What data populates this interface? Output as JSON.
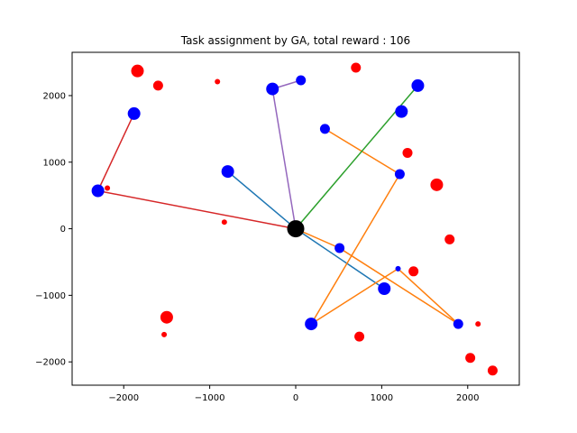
{
  "chart_data": {
    "type": "scatter",
    "title": "Task assignment by GA, total reward : 106",
    "xlabel": "",
    "ylabel": "",
    "xlim": [
      -2600,
      2600
    ],
    "ylim": [
      -2350,
      2650
    ],
    "xticks": [
      -2000,
      -1000,
      0,
      1000,
      2000
    ],
    "yticks": [
      -2000,
      -1000,
      0,
      1000,
      2000
    ],
    "xtick_labels": [
      "−2000",
      "−1000",
      "0",
      "1000",
      "2000"
    ],
    "ytick_labels": [
      "−2000",
      "−1000",
      "0",
      "1000",
      "2000"
    ],
    "grid": false,
    "depot": {
      "x": 0,
      "y": 0,
      "color": "#000000",
      "size": "large"
    },
    "assigned_tasks": [
      {
        "x": -1880,
        "y": 1730,
        "size": "medium"
      },
      {
        "x": -2300,
        "y": 570,
        "size": "medium"
      },
      {
        "x": -270,
        "y": 2100,
        "size": "medium"
      },
      {
        "x": 60,
        "y": 2230,
        "size": "small"
      },
      {
        "x": 1420,
        "y": 2150,
        "size": "medium"
      },
      {
        "x": 1230,
        "y": 1760,
        "size": "medium"
      },
      {
        "x": 340,
        "y": 1500,
        "size": "small"
      },
      {
        "x": 1210,
        "y": 820,
        "size": "small"
      },
      {
        "x": -790,
        "y": 860,
        "size": "medium"
      },
      {
        "x": 510,
        "y": -290,
        "size": "small"
      },
      {
        "x": 1030,
        "y": -900,
        "size": "medium"
      },
      {
        "x": 1190,
        "y": -600,
        "size": "tiny"
      },
      {
        "x": 180,
        "y": -1430,
        "size": "medium"
      },
      {
        "x": 1890,
        "y": -1430,
        "size": "small"
      }
    ],
    "unassigned_tasks": [
      {
        "x": -1840,
        "y": 2370,
        "size": "medium"
      },
      {
        "x": -1600,
        "y": 2150,
        "size": "small"
      },
      {
        "x": -910,
        "y": 2210,
        "size": "tiny"
      },
      {
        "x": 700,
        "y": 2420,
        "size": "small"
      },
      {
        "x": 1300,
        "y": 1140,
        "size": "small"
      },
      {
        "x": 1640,
        "y": 660,
        "size": "medium"
      },
      {
        "x": -2190,
        "y": 610,
        "size": "tiny"
      },
      {
        "x": -830,
        "y": 100,
        "size": "tiny"
      },
      {
        "x": 1790,
        "y": -160,
        "size": "small"
      },
      {
        "x": 1370,
        "y": -640,
        "size": "small"
      },
      {
        "x": -1500,
        "y": -1330,
        "size": "medium"
      },
      {
        "x": -1530,
        "y": -1590,
        "size": "tiny"
      },
      {
        "x": 740,
        "y": -1620,
        "size": "small"
      },
      {
        "x": 2120,
        "y": -1430,
        "size": "tiny"
      },
      {
        "x": 2030,
        "y": -1940,
        "size": "small"
      },
      {
        "x": 2290,
        "y": -2130,
        "size": "small"
      }
    ],
    "assigned_color": "#0000ff",
    "unassigned_color": "#ff0000",
    "routes": [
      {
        "color": "#1f77b4",
        "points": [
          [
            0,
            0
          ],
          [
            -790,
            860
          ],
          [
            0,
            0
          ],
          [
            1030,
            -900
          ]
        ]
      },
      {
        "color": "#ff7f0e",
        "points": [
          [
            0,
            0
          ],
          [
            510,
            -290
          ],
          [
            1890,
            -1430
          ],
          [
            1190,
            -600
          ],
          [
            180,
            -1430
          ],
          [
            1210,
            820
          ],
          [
            340,
            1500
          ]
        ]
      },
      {
        "color": "#2ca02c",
        "points": [
          [
            0,
            0
          ],
          [
            1420,
            2150
          ]
        ]
      },
      {
        "color": "#d62728",
        "points": [
          [
            0,
            0
          ],
          [
            -2300,
            570
          ],
          [
            -1880,
            1730
          ]
        ]
      },
      {
        "color": "#9467bd",
        "points": [
          [
            0,
            0
          ],
          [
            -270,
            2100
          ],
          [
            60,
            2230
          ]
        ]
      }
    ]
  }
}
